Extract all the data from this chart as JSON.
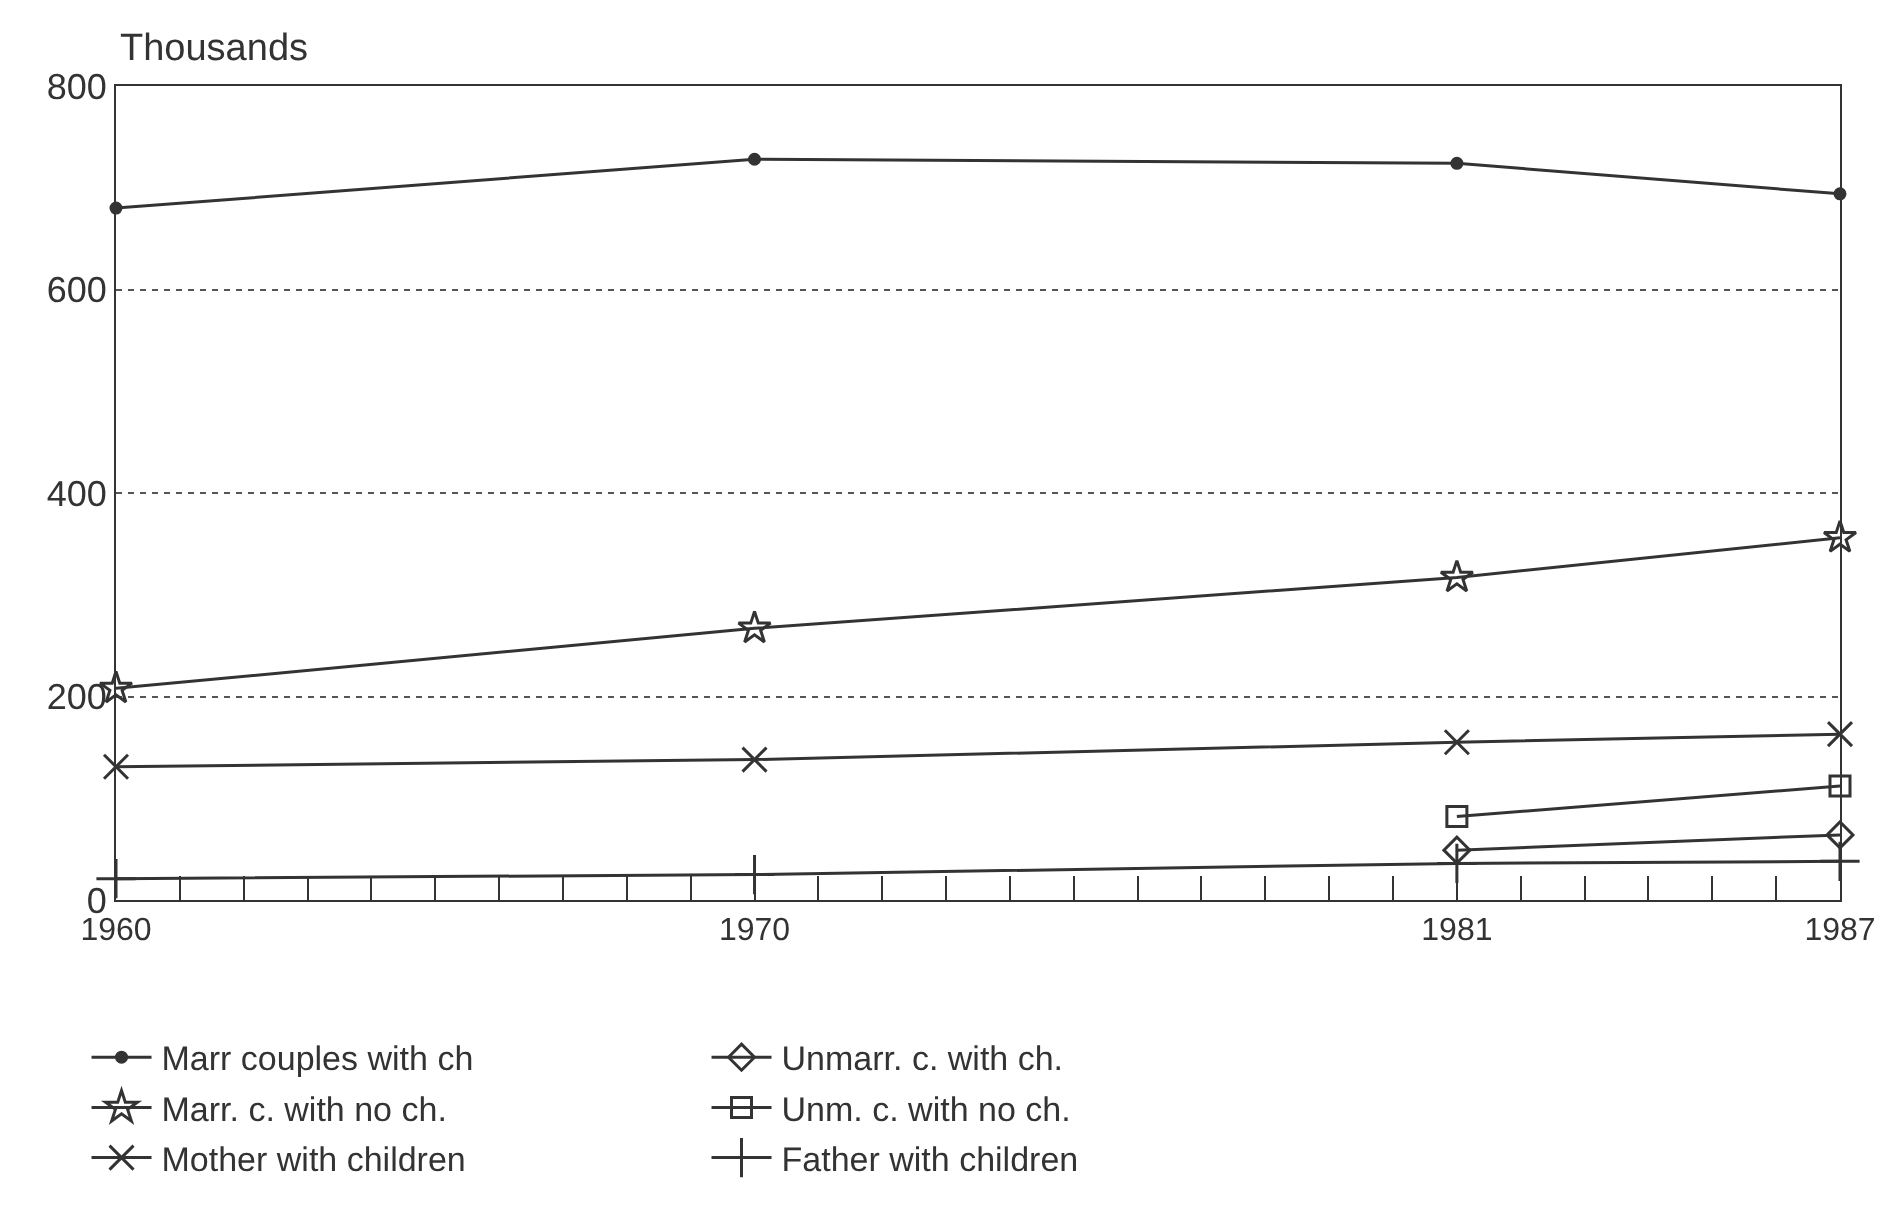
{
  "chart_data": {
    "type": "line",
    "ylabel": "Thousands",
    "x": [
      1960,
      1970,
      1981,
      1987
    ],
    "xlim": [
      1960,
      1987
    ],
    "xticks": [
      1960,
      {
        "value": 1961,
        "label": null
      },
      {
        "value": 1962,
        "label": null
      },
      {
        "value": 1963,
        "label": null
      },
      {
        "value": 1964,
        "label": null
      },
      {
        "value": 1965,
        "label": null
      },
      {
        "value": 1966,
        "label": null
      },
      {
        "value": 1967,
        "label": null
      },
      {
        "value": 1968,
        "label": null
      },
      {
        "value": 1969,
        "label": null
      },
      1970,
      {
        "value": 1971,
        "label": null
      },
      {
        "value": 1972,
        "label": null
      },
      {
        "value": 1973,
        "label": null
      },
      {
        "value": 1974,
        "label": null
      },
      {
        "value": 1975,
        "label": null
      },
      {
        "value": 1976,
        "label": null
      },
      {
        "value": 1977,
        "label": null
      },
      {
        "value": 1978,
        "label": null
      },
      {
        "value": 1979,
        "label": null
      },
      {
        "value": 1980,
        "label": null
      },
      1981,
      {
        "value": 1982,
        "label": null
      },
      {
        "value": 1983,
        "label": null
      },
      {
        "value": 1984,
        "label": null
      },
      {
        "value": 1985,
        "label": null
      },
      {
        "value": 1986,
        "label": null
      },
      1987
    ],
    "ylim": [
      0,
      800
    ],
    "yticks": [
      0,
      200,
      400,
      600,
      800
    ],
    "grid": "y",
    "legend": "bottom",
    "series": [
      {
        "name": "Marr couples with ch",
        "color": "#333333",
        "marker": "circle",
        "values": [
          680,
          728,
          724,
          694
        ]
      },
      {
        "name": "Unmarr. c. with ch.",
        "color": "#333333",
        "marker": "diamond",
        "values": [
          null,
          null,
          49,
          64
        ]
      },
      {
        "name": "Marr. c. with no ch.",
        "color": "#333333",
        "marker": "star",
        "values": [
          208,
          267,
          317,
          356
        ]
      },
      {
        "name": "Unm. c. with no ch.",
        "color": "#333333",
        "marker": "square",
        "values": [
          null,
          null,
          82,
          112
        ]
      },
      {
        "name": "Mother with children",
        "color": "#333333",
        "marker": "cross",
        "values": [
          131,
          138,
          155,
          163
        ]
      },
      {
        "name": "Father with children",
        "color": "#333333",
        "marker": "plus",
        "values": [
          21,
          25,
          36,
          38
        ]
      }
    ]
  }
}
